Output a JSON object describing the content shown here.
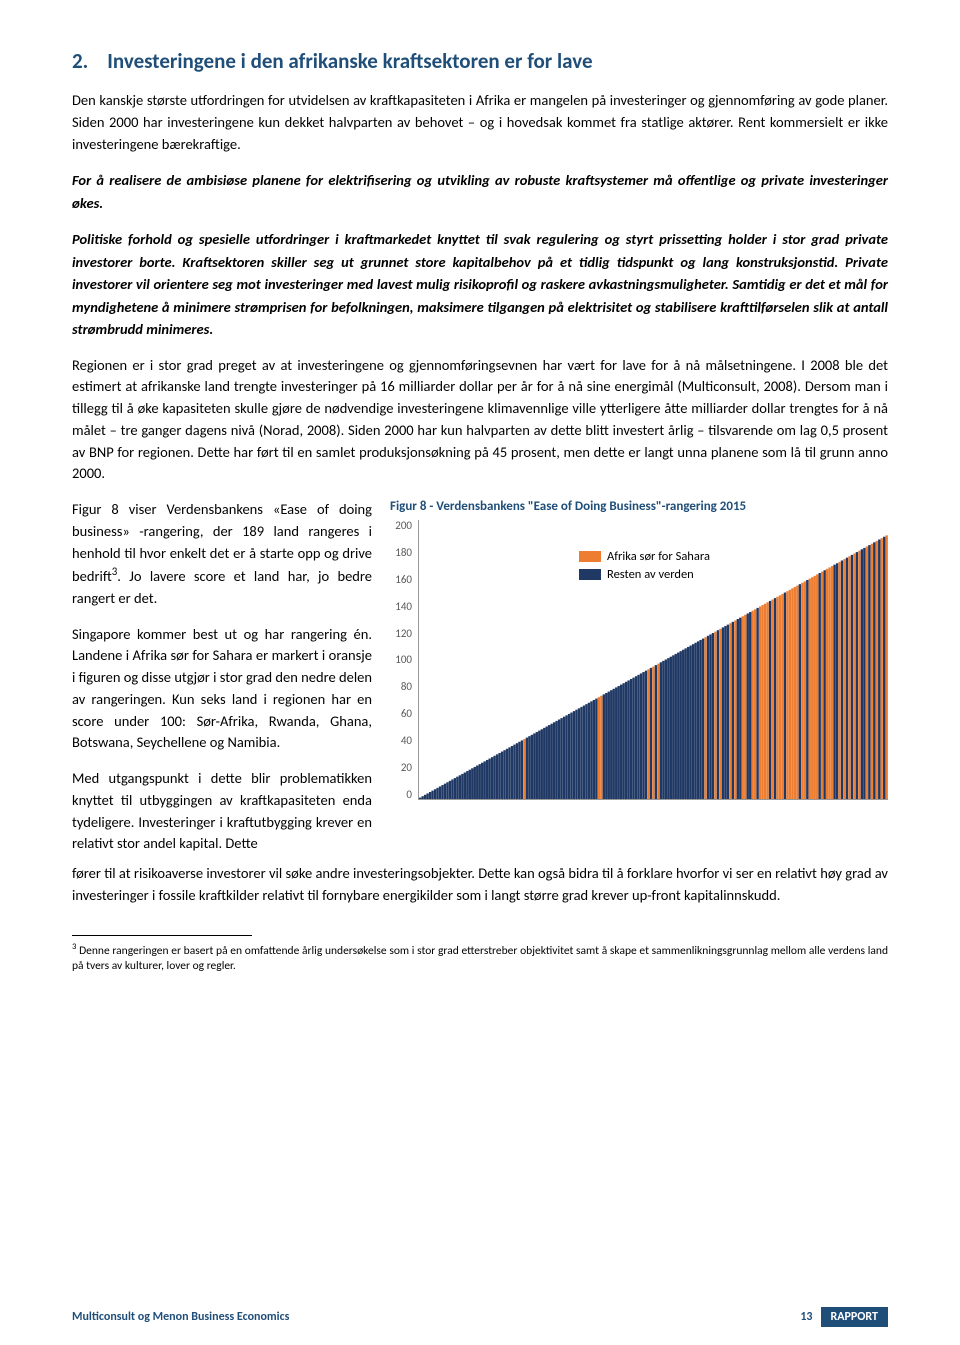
{
  "section": {
    "number": "2.",
    "title": "Investeringene i den afrikanske kraftsektoren er for lave"
  },
  "paragraphs": {
    "intro": "Den kanskje største utfordringen for utvidelsen av kraftkapasiteten i Afrika er mangelen på investeringer og gjennomføring av gode planer. Siden 2000 har investeringene kun dekket halvparten av behovet – og i hovedsak kommet fra statlige aktører. Rent kommersielt er ikke investeringene bærekraftige.",
    "p1": "For å realisere de ambisiøse planene for elektrifisering og utvikling av robuste kraftsystemer må offentlige og private investeringer økes.",
    "p2": "Politiske forhold og spesielle utfordringer i kraftmarkedet knyttet til svak regulering og styrt prissetting holder i stor grad private investorer borte. Kraftsektoren skiller seg ut grunnet store kapitalbehov på et tidlig tidspunkt og lang konstruksjonstid. Private investorer vil orientere seg mot investeringer med lavest mulig risikoprofil og raskere avkastningsmuligheter. Samtidig er det et mål for myndighetene å minimere strømprisen for befolkningen, maksimere tilgangen på elektrisitet og stabilisere krafttilførselen slik at antall strømbrudd minimeres.",
    "p3": "Regionen er i stor grad preget av at investeringene og gjennomføringsevnen har vært for lave for å nå målsetningene. I 2008 ble det estimert at afrikanske land trengte investeringer på 16 milliarder dollar per år for å nå sine energimål (Multiconsult, 2008). Dersom man i tillegg til å øke kapasiteten skulle gjøre de nødvendige investeringene klimavennlige ville ytterligere åtte milliarder dollar trengtes for å nå målet – tre ganger dagens nivå (Norad, 2008). Siden 2000 har kun halvparten av dette blitt investert årlig – tilsvarende om lag 0,5 prosent av BNP for regionen. Dette har ført til en samlet produksjonsøkning på 45 prosent, men dette er langt unna planene som lå til grunn anno 2000.",
    "left1": "Figur 8 viser Verdensbankens «Ease of doing business» -rangering, der 189 land rangeres i henhold til hvor enkelt det er å starte opp og drive bedrift",
    "left1b": ". Jo lavere score et land har, jo bedre rangert er det.",
    "left2": "Singapore kommer best ut og har rangering én. Landene i Afrika sør for Sahara er markert i oransje i figuren og disse utgjør i stor grad den nedre delen av rangeringen. Kun seks land i regionen har en score under 100: Sør-Afrika, Rwanda, Ghana, Botswana, Seychellene og Namibia.",
    "left3": "Med utgangspunkt i dette blir problematikken knyttet til utbyggingen av kraftkapasiteten enda tydeligere. Investeringer i kraftutbygging krever en relativt stor andel kapital. Dette",
    "after": "fører til at risikoaverse investorer vil søke andre investeringsobjekter. Dette kan også bidra til å forklare hvorfor vi ser en relativt høy grad av investeringer i fossile kraftkilder relativt til fornybare energikilder som i langt større grad krever up-front kapitalinnskudd."
  },
  "chart": {
    "caption": "Figur 8 - Verdensbankens \"Ease of Doing Business\"-rangering 2015",
    "legend": {
      "africa": "Afrika sør for Sahara",
      "rest": "Resten av verden"
    },
    "colors": {
      "africa": "#ed7d31",
      "rest": "#1f3864",
      "axis_text": "#595959",
      "grid": "#d9d9d9"
    },
    "y_ticks": [
      "0",
      "20",
      "40",
      "60",
      "80",
      "100",
      "120",
      "140",
      "160",
      "180",
      "200"
    ],
    "ylim": [
      0,
      200
    ],
    "n_bars": 189,
    "africa_ranks": [
      43,
      73,
      74,
      93,
      95,
      97,
      116,
      120,
      122,
      126,
      128,
      131,
      132,
      135,
      136,
      138,
      139,
      140,
      141,
      143,
      145,
      146,
      147,
      149,
      150,
      151,
      152,
      153,
      155,
      156,
      158,
      159,
      160,
      161,
      163,
      165,
      166,
      167,
      170,
      172,
      174,
      176,
      178,
      181,
      183,
      185,
      187,
      189
    ]
  },
  "footnote": {
    "marker": "3",
    "text": "Denne rangeringen er basert på en omfattende årlig undersøkelse som i stor grad etterstreber objektivitet samt å skape et sammenlikningsgrunnlag mellom alle verdens land på tvers av kulturer, lover og regler."
  },
  "footer": {
    "left": "Multiconsult og Menon Business Economics",
    "page": "13",
    "label": "RAPPORT"
  }
}
